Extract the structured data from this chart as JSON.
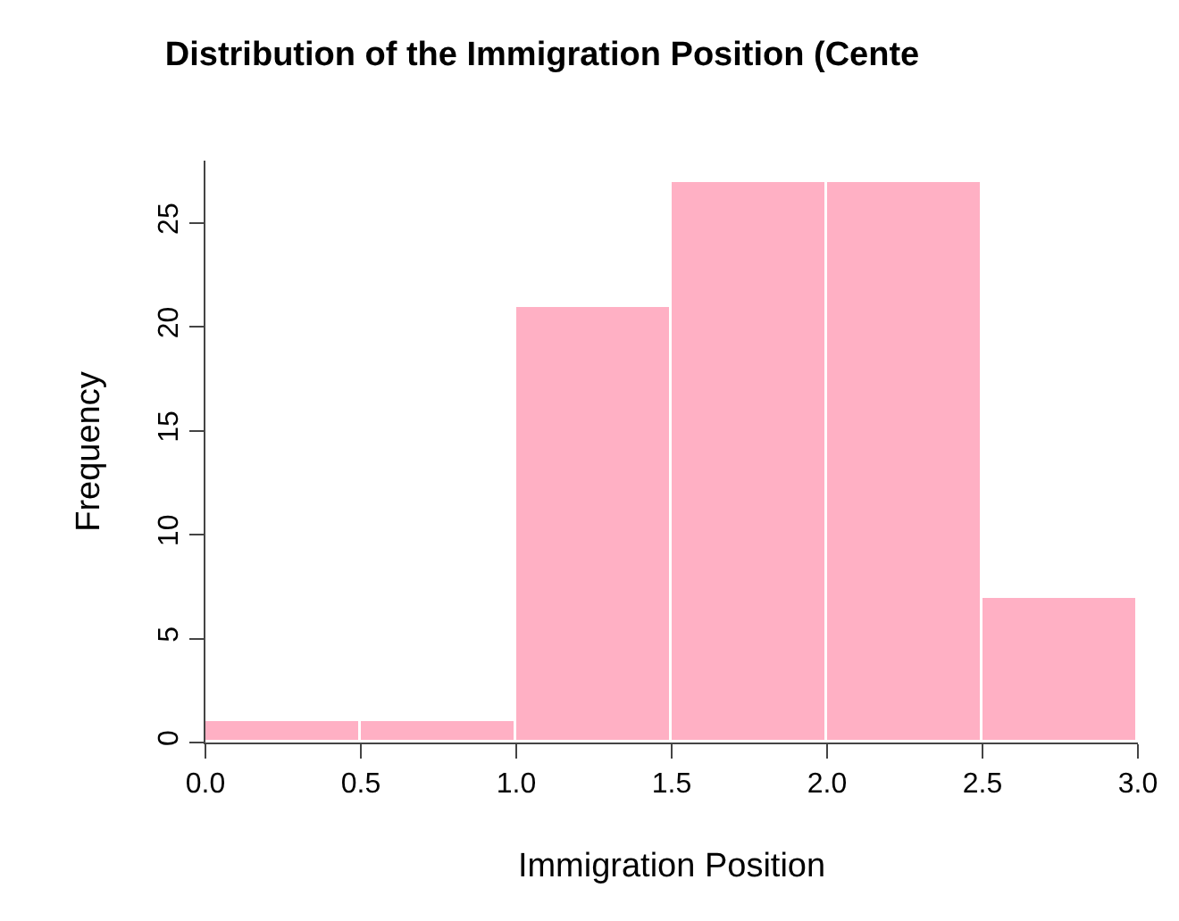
{
  "chart_data": {
    "type": "histogram",
    "title": "Distribution of the Immigration Position (Cente",
    "xlabel": "Immigration Position",
    "ylabel": "Frequency",
    "bins": [
      0,
      0.5,
      1,
      1.5,
      2,
      2.5,
      3
    ],
    "values": [
      1,
      1,
      21,
      27,
      27,
      7
    ],
    "color": "#ffb0c4",
    "xlim": [
      0,
      3
    ],
    "xticks": [
      {
        "value": 0,
        "label": "0.0"
      },
      {
        "value": 0.5,
        "label": "0.5"
      },
      {
        "value": 1,
        "label": "1.0"
      },
      {
        "value": 1.5,
        "label": "1.5"
      },
      {
        "value": 2,
        "label": "2.0"
      },
      {
        "value": 2.5,
        "label": "2.5"
      },
      {
        "value": 3,
        "label": "3.0"
      }
    ],
    "ylim": [
      0,
      28
    ],
    "yticks": [
      0,
      5,
      10,
      15,
      20,
      25
    ],
    "grid": false,
    "legend": false
  }
}
